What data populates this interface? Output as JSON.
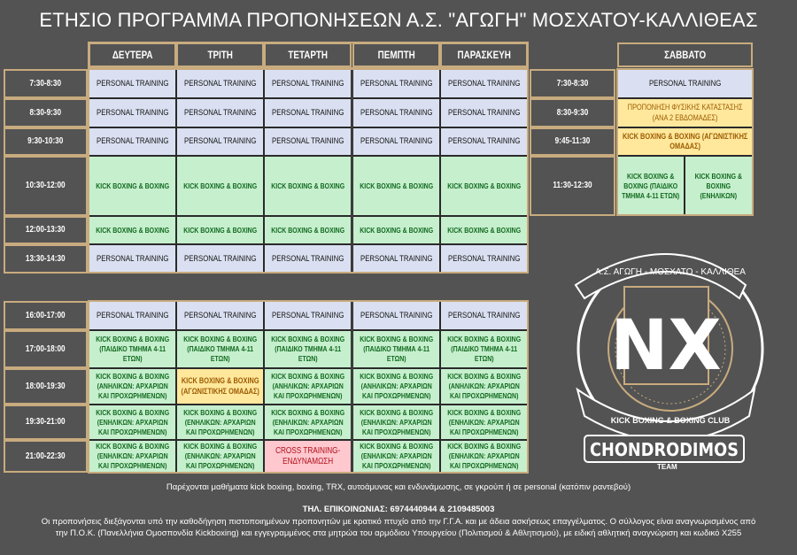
{
  "title": "ΕΤΗΣΙΟ ΠΡΟΓΡΑΜΜΑ ΠΡΟΠΟΝΗΣΕΩΝ Α.Σ. \"ΑΓΩΓΗ\" ΜΟΣΧΑΤΟΥ-ΚΑΛΛΙΘΕΑΣ",
  "weekdays": [
    "ΔΕΥΤΕΡΑ",
    "ΤΡΙΤΗ",
    "ΤΕΤΑΡΤΗ",
    "ΠΕΜΠΤΗ",
    "ΠΑΡΑΣΚΕΥΗ"
  ],
  "labels": {
    "pt": "PERSONAL TRAINING",
    "kb": "KICK BOXING & BOXING",
    "kb_kids": "KICK BOXING & BOXING (ΠΑΙΔΙΚΟ ΤΜΗΜΑ 4-11 ΕΤΩΝ)",
    "kb_anilikon": "KICK BOXING & BOXING (ΑΝΗΛΙΚΩΝ: ΑΡΧΑΡΙΩΝ ΚΑΙ ΠΡΟΧΩΡΗΜΕΝΩΝ)",
    "kb_enilikon": "KICK BOXING & BOXING (ΕΝΗΛΙΚΩΝ: ΑΡΧΑΡΙΩΝ ΚΑΙ ΠΡΟΧΩΡΗΜΕΝΩΝ)",
    "kb_agon": "KICK BOXING & BOXING (ΑΓΩΝΙΣΤΙΚΗΣ ΟΜΑΔΑΣ)",
    "cross": "CROSS TRAINING-ΕΝΔΥΝΑΜΩΣΗ"
  },
  "weekday_rows": [
    {
      "time": "7:30-8:30",
      "cells": [
        "pt",
        "pt",
        "pt",
        "pt",
        "pt"
      ]
    },
    {
      "time": "8:30-9:30",
      "cells": [
        "pt",
        "pt",
        "pt",
        "pt",
        "pt"
      ]
    },
    {
      "time": "9:30-10:30",
      "cells": [
        "pt",
        "pt",
        "pt",
        "pt",
        "pt"
      ]
    },
    {
      "time": "10:30-12:00",
      "cells": [
        "kb",
        "kb",
        "kb",
        "kb",
        "kb"
      ]
    },
    {
      "time": "12:00-13:30",
      "cells": [
        "kb",
        "kb",
        "kb",
        "kb",
        "kb"
      ]
    },
    {
      "time": "13:30-14:30",
      "cells": [
        "pt",
        "pt",
        "pt",
        "pt",
        "pt"
      ]
    },
    {
      "time": "16:00-17:00",
      "cells": [
        "pt",
        "pt",
        "pt",
        "pt",
        "pt"
      ]
    },
    {
      "time": "17:00-18:00",
      "cells": [
        "kb_kids",
        "kb_kids",
        "kb_kids",
        "kb_kids",
        "kb_kids"
      ]
    },
    {
      "time": "18:00-19:30",
      "cells": [
        "kb_anilikon",
        "kb_agon",
        "kb_anilikon",
        "kb_anilikon",
        "kb_anilikon"
      ]
    },
    {
      "time": "19:30-21:00",
      "cells": [
        "kb_enilikon",
        "kb_enilikon",
        "kb_enilikon",
        "kb_enilikon",
        "kb_enilikon"
      ]
    },
    {
      "time": "21:00-22:30",
      "cells": [
        "kb_enilikon",
        "kb_enilikon",
        "cross",
        "kb_enilikon",
        "kb_enilikon"
      ]
    }
  ],
  "saturday": {
    "header": "ΣΑΒΒΑΤΟ",
    "rows": [
      {
        "time": "7:30-8:30",
        "cells": [
          "PERSONAL TRAINING"
        ]
      },
      {
        "time": "8:30-9:30",
        "cells": [
          "ΠΡΟΠΟΝΗΣΗ ΦΥΣΙΚΗΣ ΚΑΤΑΣΤΑΣΗΣ (ΑΝΑ 2 ΕΒΔΟΜΑΔΕΣ)"
        ]
      },
      {
        "time": "9:45-11:30",
        "cells": [
          "KICK BOXING & BOXING (ΑΓΩΝΙΣΤΙΚΗΣ ΟΜΑΔΑΣ)"
        ]
      },
      {
        "time": "11:30-12:30",
        "cells": [
          "KICK BOXING & BOXING (ΠΑΙΔΙΚΟ ΤΜΗΜΑ 4-11 ΕΤΩΝ)",
          "KICK BOXING & BOXING (ΕΝΗΛΙΚΩΝ)"
        ]
      }
    ]
  },
  "logo": {
    "arc_text": "Α.Σ. ΑΓΩΓΗ - ΜΟΣΧΑΤΟ - ΚΑΛΛΙΘΕΑ",
    "monogram": "NX",
    "club": "KICK BOXING & BOXING CLUB",
    "team_name": "CHONDRODIMOS",
    "team": "TEAM"
  },
  "footer": {
    "services": "Παρέχονται μαθήματα kick boxing, boxing, TRX, αυτοάμυνας και ενδυνάμωσης, σε γκρούπ ή σε personal (κατόπιν ραντεβού)",
    "phone": "ΤΗΛ. ΕΠΙΚΟΙΝΩΝΙΑΣ: 6974440944 & 2109485003",
    "info": "Οι προπονήσεις διεξάγονται υπό την καθοδήγηση πιστοποιημένων προπονητών με κρατικό πτυχίο από την Γ.Γ.Α. και με άδεια ασκήσεως επαγγέλματος. Ο σύλλογος είναι αναγνωρισμένος από την Π.Ο.Κ. (Πανελλήνια Ομοσπονδία Kickboxing) και εγγεγραμμένος στα μητρώα του αρμόδιου Υπουργείου (Πολιτισμού & Αθλητισμού), με ειδική αθλητική αναγνώριση και κωδικό Χ255"
  },
  "colors": {
    "background": "#535353",
    "border_gold": "#c8ab7e",
    "personal": "#dae0f1",
    "kickboxing": "#c6efce",
    "competitive": "#ffe89c",
    "cross": "#ffc7ce"
  }
}
